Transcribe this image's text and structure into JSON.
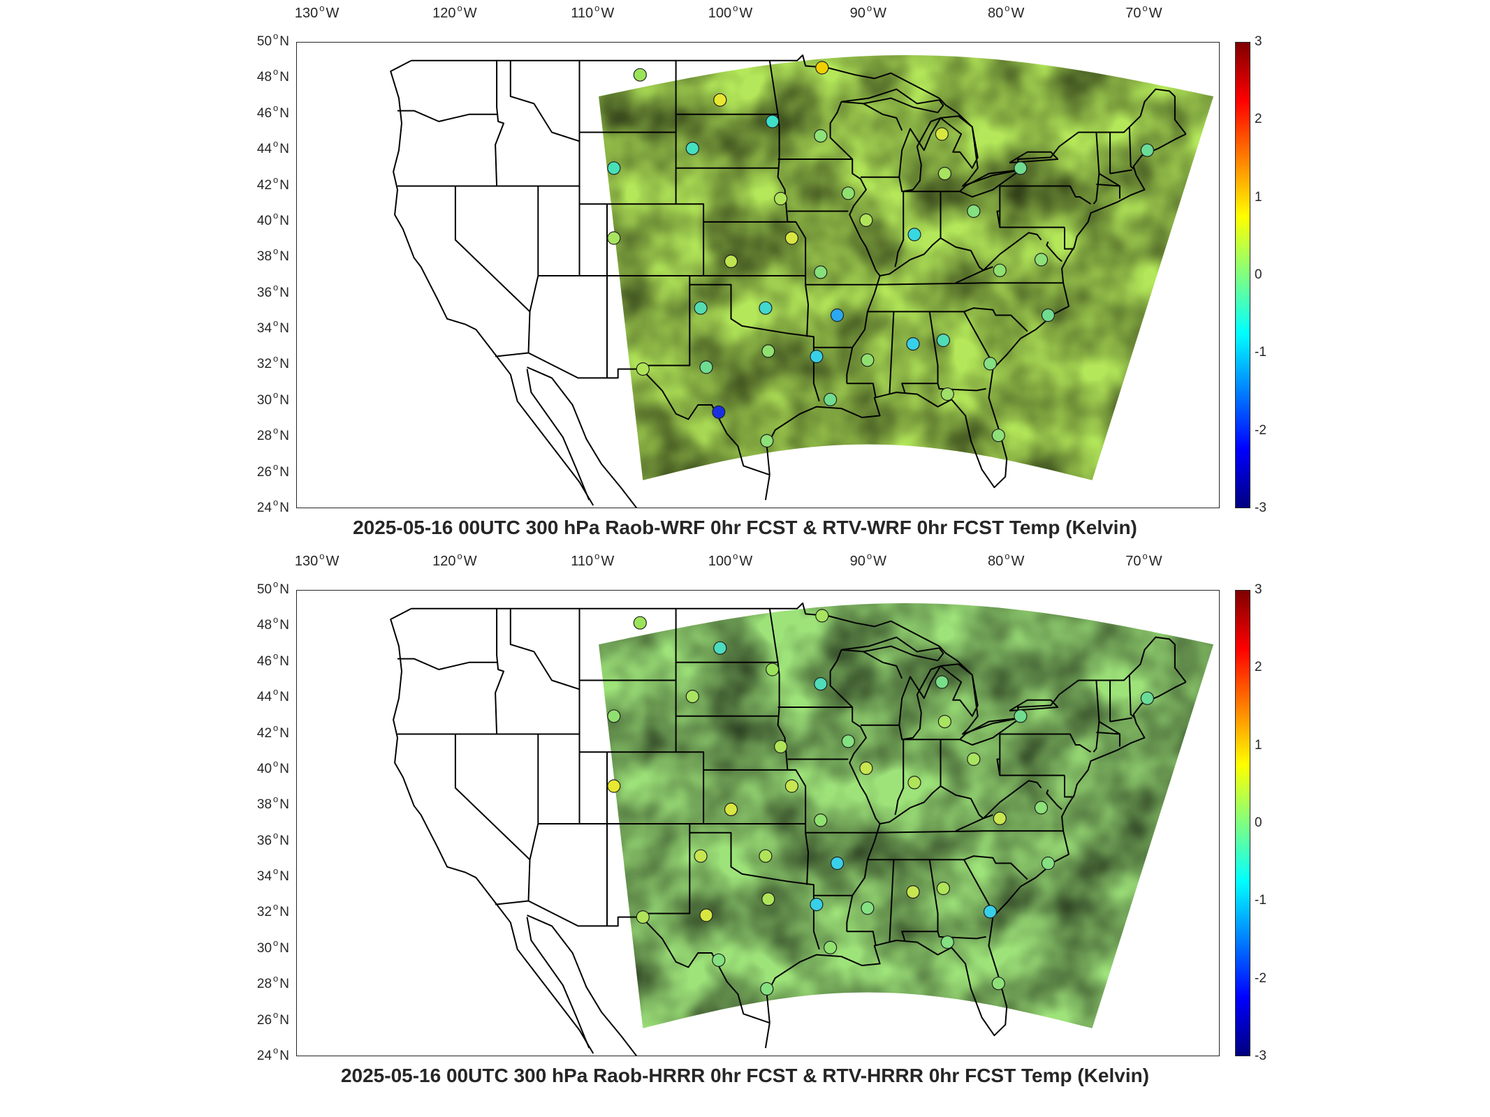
{
  "panels": [
    {
      "id": "wrf",
      "title": "2025-05-16 00UTC 300 hPa Raob-WRF 0hr FCST & RTV-WRF 0hr FCST Temp (Kelvin)",
      "field_tint": "#b4e85a",
      "field_tint2": "#7fe0a0",
      "stations": [
        {
          "lon": -106.6,
          "lat": 48.2,
          "color": "#9be35a"
        },
        {
          "lon": -93.4,
          "lat": 48.6,
          "color": "#f0d000"
        },
        {
          "lon": -100.8,
          "lat": 46.8,
          "color": "#e8e830"
        },
        {
          "lon": -97.0,
          "lat": 45.6,
          "color": "#3ee0c8"
        },
        {
          "lon": -93.5,
          "lat": 44.8,
          "color": "#8ee27a"
        },
        {
          "lon": -84.7,
          "lat": 44.9,
          "color": "#d8e640"
        },
        {
          "lon": -102.8,
          "lat": 44.1,
          "color": "#44e0c0"
        },
        {
          "lon": -108.5,
          "lat": 43.0,
          "color": "#46e0b8"
        },
        {
          "lon": -84.5,
          "lat": 42.7,
          "color": "#a8e460"
        },
        {
          "lon": -91.5,
          "lat": 41.6,
          "color": "#90e070"
        },
        {
          "lon": -96.4,
          "lat": 41.3,
          "color": "#b0e458"
        },
        {
          "lon": -79.0,
          "lat": 43.0,
          "color": "#70dc90"
        },
        {
          "lon": -69.8,
          "lat": 44.0,
          "color": "#6adc98"
        },
        {
          "lon": -82.4,
          "lat": 40.6,
          "color": "#84e080"
        },
        {
          "lon": -90.2,
          "lat": 40.1,
          "color": "#b0e458"
        },
        {
          "lon": -86.7,
          "lat": 39.3,
          "color": "#38d8e0"
        },
        {
          "lon": -95.6,
          "lat": 39.1,
          "color": "#d8e640"
        },
        {
          "lon": -108.5,
          "lat": 39.1,
          "color": "#a8e460"
        },
        {
          "lon": -100.0,
          "lat": 37.8,
          "color": "#c0e450"
        },
        {
          "lon": -77.5,
          "lat": 37.9,
          "color": "#8ee078"
        },
        {
          "lon": -80.5,
          "lat": 37.3,
          "color": "#90e070"
        },
        {
          "lon": -93.5,
          "lat": 37.2,
          "color": "#86e07c"
        },
        {
          "lon": -102.2,
          "lat": 35.2,
          "color": "#54dcb0"
        },
        {
          "lon": -97.5,
          "lat": 35.2,
          "color": "#40d8d0"
        },
        {
          "lon": -92.3,
          "lat": 34.8,
          "color": "#2aa8f0"
        },
        {
          "lon": -77.0,
          "lat": 34.8,
          "color": "#70dc90"
        },
        {
          "lon": -86.8,
          "lat": 33.2,
          "color": "#38d0e8"
        },
        {
          "lon": -84.6,
          "lat": 33.4,
          "color": "#50dcb8"
        },
        {
          "lon": -97.3,
          "lat": 32.8,
          "color": "#90e070"
        },
        {
          "lon": -93.8,
          "lat": 32.5,
          "color": "#38d0e8"
        },
        {
          "lon": -90.1,
          "lat": 32.3,
          "color": "#90e070"
        },
        {
          "lon": -81.2,
          "lat": 32.1,
          "color": "#84e080"
        },
        {
          "lon": -106.4,
          "lat": 31.8,
          "color": "#b0e458"
        },
        {
          "lon": -101.8,
          "lat": 31.9,
          "color": "#70dc90"
        },
        {
          "lon": -92.8,
          "lat": 30.1,
          "color": "#70dc90"
        },
        {
          "lon": -84.3,
          "lat": 30.4,
          "color": "#a0e068"
        },
        {
          "lon": -100.9,
          "lat": 29.4,
          "color": "#1830e0"
        },
        {
          "lon": -97.4,
          "lat": 27.8,
          "color": "#8ee078"
        },
        {
          "lon": -80.6,
          "lat": 28.1,
          "color": "#8ee078"
        }
      ]
    },
    {
      "id": "hrrr",
      "title": "2025-05-16 00UTC 300 hPa Raob-HRRR 0hr FCST & RTV-HRRR 0hr FCST Temp (Kelvin)",
      "field_tint": "#9ee37a",
      "field_tint2": "#3ed8e0",
      "stations": [
        {
          "lon": -106.6,
          "lat": 48.2,
          "color": "#9be35a"
        },
        {
          "lon": -93.4,
          "lat": 48.6,
          "color": "#a8e460"
        },
        {
          "lon": -100.8,
          "lat": 46.8,
          "color": "#4cdcc0"
        },
        {
          "lon": -97.0,
          "lat": 45.6,
          "color": "#9be35a"
        },
        {
          "lon": -93.5,
          "lat": 44.8,
          "color": "#50dcb8"
        },
        {
          "lon": -84.7,
          "lat": 44.9,
          "color": "#78de88"
        },
        {
          "lon": -102.8,
          "lat": 44.1,
          "color": "#a8e460"
        },
        {
          "lon": -108.5,
          "lat": 43.0,
          "color": "#90e070"
        },
        {
          "lon": -84.5,
          "lat": 42.7,
          "color": "#a8e460"
        },
        {
          "lon": -91.5,
          "lat": 41.6,
          "color": "#84e080"
        },
        {
          "lon": -96.4,
          "lat": 41.3,
          "color": "#b0e458"
        },
        {
          "lon": -79.0,
          "lat": 43.0,
          "color": "#70dc90"
        },
        {
          "lon": -69.8,
          "lat": 44.0,
          "color": "#6adc98"
        },
        {
          "lon": -82.4,
          "lat": 40.6,
          "color": "#a8e460"
        },
        {
          "lon": -90.2,
          "lat": 40.1,
          "color": "#c8e650"
        },
        {
          "lon": -86.7,
          "lat": 39.3,
          "color": "#b0e458"
        },
        {
          "lon": -95.6,
          "lat": 39.1,
          "color": "#c8e650"
        },
        {
          "lon": -108.5,
          "lat": 39.1,
          "color": "#e8e830"
        },
        {
          "lon": -100.0,
          "lat": 37.8,
          "color": "#d8e640"
        },
        {
          "lon": -77.5,
          "lat": 37.9,
          "color": "#8ee078"
        },
        {
          "lon": -80.5,
          "lat": 37.3,
          "color": "#c8e650"
        },
        {
          "lon": -93.5,
          "lat": 37.2,
          "color": "#90e070"
        },
        {
          "lon": -102.2,
          "lat": 35.2,
          "color": "#c8e650"
        },
        {
          "lon": -97.5,
          "lat": 35.2,
          "color": "#b0e458"
        },
        {
          "lon": -92.3,
          "lat": 34.8,
          "color": "#38d0e8"
        },
        {
          "lon": -77.0,
          "lat": 34.8,
          "color": "#84e080"
        },
        {
          "lon": -86.8,
          "lat": 33.2,
          "color": "#c8e650"
        },
        {
          "lon": -84.6,
          "lat": 33.4,
          "color": "#b0e458"
        },
        {
          "lon": -97.3,
          "lat": 32.8,
          "color": "#b0e458"
        },
        {
          "lon": -93.8,
          "lat": 32.5,
          "color": "#38d0e8"
        },
        {
          "lon": -90.1,
          "lat": 32.3,
          "color": "#84e080"
        },
        {
          "lon": -81.2,
          "lat": 32.1,
          "color": "#38d0e8"
        },
        {
          "lon": -106.4,
          "lat": 31.8,
          "color": "#b0e458"
        },
        {
          "lon": -101.8,
          "lat": 31.9,
          "color": "#d8e640"
        },
        {
          "lon": -92.8,
          "lat": 30.1,
          "color": "#90e070"
        },
        {
          "lon": -84.3,
          "lat": 30.4,
          "color": "#84e080"
        },
        {
          "lon": -100.9,
          "lat": 29.4,
          "color": "#84e080"
        },
        {
          "lon": -97.4,
          "lat": 27.8,
          "color": "#84e080"
        },
        {
          "lon": -80.6,
          "lat": 28.1,
          "color": "#8ee078"
        }
      ]
    }
  ],
  "lon_ticks": [
    {
      "lon": -130,
      "num": "130",
      "hem": "W"
    },
    {
      "lon": -120,
      "num": "120",
      "hem": "W"
    },
    {
      "lon": -110,
      "num": "110",
      "hem": "W"
    },
    {
      "lon": -100,
      "num": "100",
      "hem": "W"
    },
    {
      "lon": -90,
      "num": "90",
      "hem": "W"
    },
    {
      "lon": -80,
      "num": "80",
      "hem": "W"
    },
    {
      "lon": -70,
      "num": "70",
      "hem": "W"
    }
  ],
  "lat_ticks": [
    {
      "lat": 50,
      "num": "50",
      "hem": "N"
    },
    {
      "lat": 48,
      "num": "48",
      "hem": "N"
    },
    {
      "lat": 46,
      "num": "46",
      "hem": "N"
    },
    {
      "lat": 44,
      "num": "44",
      "hem": "N"
    },
    {
      "lat": 42,
      "num": "42",
      "hem": "N"
    },
    {
      "lat": 40,
      "num": "40",
      "hem": "N"
    },
    {
      "lat": 38,
      "num": "38",
      "hem": "N"
    },
    {
      "lat": 36,
      "num": "36",
      "hem": "N"
    },
    {
      "lat": 34,
      "num": "34",
      "hem": "N"
    },
    {
      "lat": 32,
      "num": "32",
      "hem": "N"
    },
    {
      "lat": 30,
      "num": "30",
      "hem": "N"
    },
    {
      "lat": 28,
      "num": "28",
      "hem": "N"
    },
    {
      "lat": 26,
      "num": "26",
      "hem": "N"
    },
    {
      "lat": 24,
      "num": "24",
      "hem": "N"
    }
  ],
  "colorbar": {
    "min": -3,
    "max": 3,
    "ticks": [
      "3",
      "2",
      "1",
      "0",
      "-1",
      "-2",
      "-3"
    ],
    "colormap": "jet"
  },
  "map_extent": {
    "lon_min": -131.5,
    "lon_max": -64.5,
    "lat_min": 24,
    "lat_max": 50
  },
  "colors": {
    "outline": "#000000",
    "axis": "#262626",
    "missing": "#ffffff"
  }
}
